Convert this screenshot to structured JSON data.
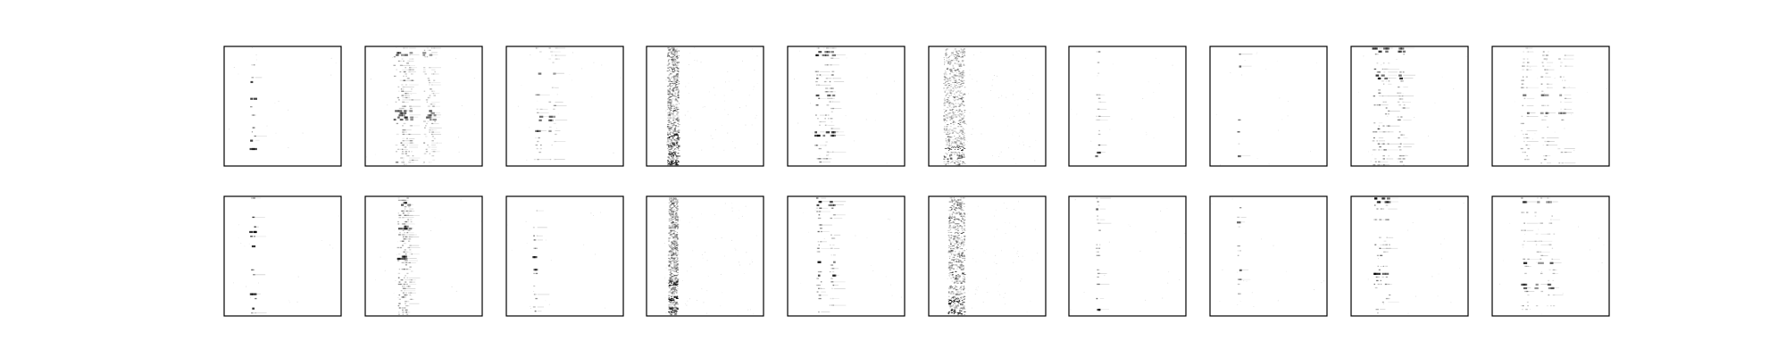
{
  "figure": {
    "background": "#ffffff",
    "frame_color": "#000000",
    "ink_color": "#000000",
    "rows": 2,
    "cols": 10
  },
  "chart_data": {
    "type": "heatmap",
    "colormap": "greys",
    "axes_visible": false,
    "ticks": "none",
    "panels": [
      {
        "id": "r1c1",
        "row": 1,
        "col": 1,
        "pattern": "single-column",
        "column_centers": [
          0.25
        ],
        "spread": 0.02,
        "density": 0.35,
        "max_intensity": 0.75,
        "row_step": 0.035,
        "bursts": [
          0.3,
          0.42,
          0.78,
          0.85
        ]
      },
      {
        "id": "r1c2",
        "row": 1,
        "col": 2,
        "pattern": "dense-cluster",
        "column_centers": [
          0.3,
          0.36,
          0.55
        ],
        "spread": 0.05,
        "density": 0.75,
        "max_intensity": 0.6,
        "row_step": 0.018,
        "bursts": [
          0.05,
          0.55,
          0.6
        ]
      },
      {
        "id": "r1c3",
        "row": 1,
        "col": 3,
        "pattern": "single-column",
        "column_centers": [
          0.27,
          0.4
        ],
        "spread": 0.03,
        "density": 0.4,
        "max_intensity": 0.55,
        "row_step": 0.03,
        "bursts": [
          0.22,
          0.6,
          0.7
        ]
      },
      {
        "id": "r1c4",
        "row": 1,
        "col": 4,
        "pattern": "diffuse-streak",
        "column_centers": [
          0.23
        ],
        "spread": 0.05,
        "density": 0.95,
        "max_intensity": 0.7,
        "row_step": 0.008,
        "bursts": [
          0.75,
          0.82,
          0.9,
          0.97
        ]
      },
      {
        "id": "r1c5",
        "row": 1,
        "col": 5,
        "pattern": "multi-column",
        "column_centers": [
          0.26,
          0.33,
          0.38
        ],
        "spread": 0.02,
        "density": 0.55,
        "max_intensity": 0.7,
        "row_step": 0.028,
        "bursts": [
          0.05,
          0.4,
          0.72
        ]
      },
      {
        "id": "r1c6",
        "row": 1,
        "col": 6,
        "pattern": "diffuse-streak",
        "column_centers": [
          0.22
        ],
        "spread": 0.09,
        "density": 0.95,
        "max_intensity": 0.6,
        "row_step": 0.008,
        "bursts": [
          0.85,
          0.92
        ]
      },
      {
        "id": "r1c7",
        "row": 1,
        "col": 7,
        "pattern": "single-column",
        "column_centers": [
          0.25
        ],
        "spread": 0.015,
        "density": 0.5,
        "max_intensity": 0.55,
        "row_step": 0.03,
        "bursts": [
          0.9
        ]
      },
      {
        "id": "r1c8",
        "row": 1,
        "col": 8,
        "pattern": "single-column",
        "column_centers": [
          0.25
        ],
        "spread": 0.01,
        "density": 0.25,
        "max_intensity": 0.6,
        "row_step": 0.05,
        "bursts": [
          0.15,
          0.9
        ]
      },
      {
        "id": "r1c9",
        "row": 1,
        "col": 9,
        "pattern": "multi-column",
        "column_centers": [
          0.22,
          0.3,
          0.43
        ],
        "spread": 0.03,
        "density": 0.55,
        "max_intensity": 0.8,
        "row_step": 0.025,
        "bursts": [
          0.03,
          0.25
        ]
      },
      {
        "id": "r1c10",
        "row": 1,
        "col": 10,
        "pattern": "multi-column",
        "column_centers": [
          0.28,
          0.45,
          0.6
        ],
        "spread": 0.03,
        "density": 0.55,
        "max_intensity": 0.55,
        "row_step": 0.03,
        "bursts": [
          0.4,
          0.55
        ]
      },
      {
        "id": "r2c1",
        "row": 2,
        "col": 1,
        "pattern": "single-column",
        "column_centers": [
          0.25
        ],
        "spread": 0.02,
        "density": 0.3,
        "max_intensity": 0.8,
        "row_step": 0.04,
        "bursts": [
          0.3,
          0.4,
          0.8,
          0.92
        ]
      },
      {
        "id": "r2c2",
        "row": 2,
        "col": 2,
        "pattern": "dense-cluster",
        "column_centers": [
          0.32,
          0.36
        ],
        "spread": 0.04,
        "density": 0.85,
        "max_intensity": 0.65,
        "row_step": 0.018,
        "bursts": [
          0.05,
          0.25,
          0.5
        ]
      },
      {
        "id": "r2c3",
        "row": 2,
        "col": 3,
        "pattern": "single-column",
        "column_centers": [
          0.25
        ],
        "spread": 0.015,
        "density": 0.4,
        "max_intensity": 0.55,
        "row_step": 0.035,
        "bursts": [
          0.5,
          0.6
        ]
      },
      {
        "id": "r2c4",
        "row": 2,
        "col": 4,
        "pattern": "diffuse-streak",
        "column_centers": [
          0.23
        ],
        "spread": 0.04,
        "density": 0.95,
        "max_intensity": 0.7,
        "row_step": 0.008,
        "bursts": [
          0.72,
          0.85,
          0.95
        ]
      },
      {
        "id": "r2c5",
        "row": 2,
        "col": 5,
        "pattern": "multi-column",
        "column_centers": [
          0.27,
          0.38
        ],
        "spread": 0.02,
        "density": 0.6,
        "max_intensity": 0.7,
        "row_step": 0.028,
        "bursts": [
          0.05,
          0.55,
          0.65
        ]
      },
      {
        "id": "r2c6",
        "row": 2,
        "col": 6,
        "pattern": "diffuse-streak",
        "column_centers": [
          0.24
        ],
        "spread": 0.07,
        "density": 0.9,
        "max_intensity": 0.75,
        "row_step": 0.008,
        "bursts": [
          0.88,
          0.96
        ]
      },
      {
        "id": "r2c7",
        "row": 2,
        "col": 7,
        "pattern": "single-column",
        "column_centers": [
          0.25
        ],
        "spread": 0.015,
        "density": 0.55,
        "max_intensity": 0.6,
        "row_step": 0.03,
        "bursts": [
          0.1,
          0.95
        ]
      },
      {
        "id": "r2c8",
        "row": 2,
        "col": 8,
        "pattern": "single-column",
        "column_centers": [
          0.25
        ],
        "spread": 0.015,
        "density": 0.35,
        "max_intensity": 0.6,
        "row_step": 0.04,
        "bursts": [
          0.2,
          0.6
        ]
      },
      {
        "id": "r2c9",
        "row": 2,
        "col": 9,
        "pattern": "multi-column",
        "column_centers": [
          0.23,
          0.3
        ],
        "spread": 0.03,
        "density": 0.45,
        "max_intensity": 0.8,
        "row_step": 0.03,
        "bursts": [
          0.03,
          0.65
        ]
      },
      {
        "id": "r2c10",
        "row": 2,
        "col": 10,
        "pattern": "multi-column",
        "column_centers": [
          0.28,
          0.4,
          0.5
        ],
        "spread": 0.03,
        "density": 0.55,
        "max_intensity": 0.6,
        "row_step": 0.03,
        "bursts": [
          0.05,
          0.55,
          0.75
        ]
      }
    ]
  }
}
